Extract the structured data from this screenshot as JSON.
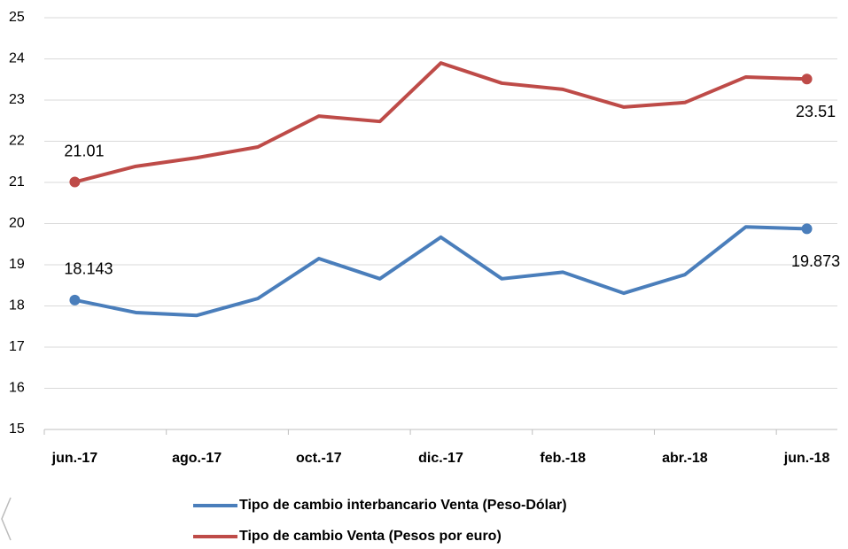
{
  "chart_data": {
    "type": "line",
    "categories": [
      "jun.-17",
      null,
      "ago.-17",
      null,
      "oct.-17",
      null,
      "dic.-17",
      null,
      "feb.-18",
      null,
      "abr.-18",
      null,
      "jun.-18"
    ],
    "series": [
      {
        "name": "Tipo de cambio interbancario Venta (Peso-Dólar)",
        "color": "#4a7ebb",
        "values": [
          18.143,
          17.84,
          17.77,
          18.18,
          19.15,
          18.66,
          19.67,
          18.66,
          18.82,
          18.31,
          18.76,
          19.92,
          19.873
        ],
        "value_labels": [
          "18.143",
          null,
          null,
          null,
          null,
          null,
          null,
          null,
          null,
          null,
          null,
          null,
          "19.873"
        ]
      },
      {
        "name": "Tipo de cambio Venta (Pesos por euro)",
        "color": "#be4b48",
        "values": [
          21.01,
          21.39,
          21.6,
          21.86,
          22.61,
          22.48,
          23.9,
          23.41,
          23.26,
          22.83,
          22.94,
          23.56,
          23.51
        ],
        "value_labels": [
          "21.01",
          null,
          null,
          null,
          null,
          null,
          null,
          null,
          null,
          null,
          null,
          null,
          "23.51"
        ]
      }
    ],
    "ylim": [
      15,
      25
    ],
    "yticks": [
      15,
      16,
      17,
      18,
      19,
      20,
      21,
      22,
      23,
      24,
      25
    ],
    "grid": true
  }
}
